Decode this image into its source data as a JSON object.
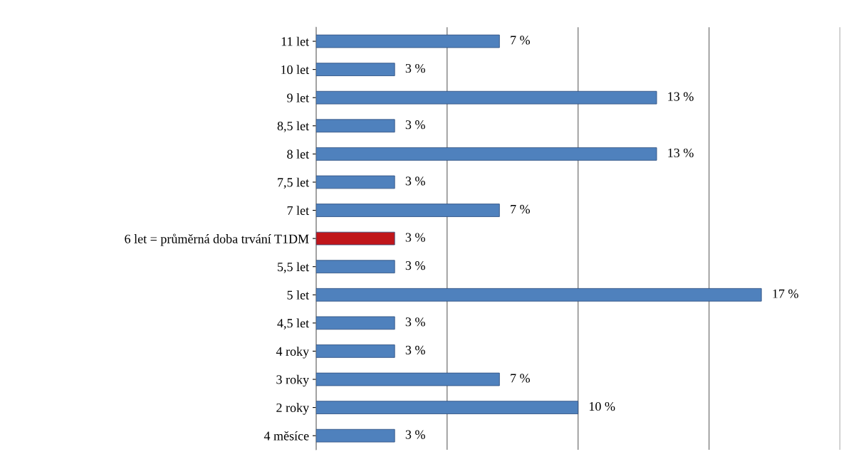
{
  "chart_data": {
    "type": "bar",
    "orientation": "horizontal",
    "categories": [
      "11 let",
      "10 let",
      "9 let",
      "8,5 let",
      "8 let",
      "7,5 let",
      "7 let",
      "6 let = průměrná doba trvání T1DM",
      "5,5 let",
      "5 let",
      "4,5 let",
      "4 roky",
      "3 roky",
      "2 roky",
      "4 měsíce"
    ],
    "values": [
      7,
      3,
      13,
      3,
      13,
      3,
      7,
      3,
      3,
      17,
      3,
      3,
      7,
      10,
      3
    ],
    "colors": [
      "#4f81bd",
      "#4f81bd",
      "#4f81bd",
      "#4f81bd",
      "#4f81bd",
      "#4f81bd",
      "#4f81bd",
      "#c0161b",
      "#4f81bd",
      "#4f81bd",
      "#4f81bd",
      "#4f81bd",
      "#4f81bd",
      "#4f81bd",
      "#4f81bd"
    ],
    "value_labels": [
      "7 %",
      "3 %",
      "13 %",
      "3 %",
      "13 %",
      "3 %",
      "7 %",
      "3 %",
      "3 %",
      "17 %",
      "3 %",
      "3 %",
      "7 %",
      "10 %",
      "3 %"
    ],
    "xlim": [
      0,
      20
    ],
    "xticks": [
      {
        "value": 0,
        "label": null
      },
      {
        "value": 5,
        "label": null
      },
      {
        "value": 10,
        "label": null
      },
      {
        "value": 15,
        "label": null
      },
      {
        "value": 20,
        "label": null
      }
    ],
    "grid": "x",
    "tick_labels": "y",
    "legend": false
  }
}
